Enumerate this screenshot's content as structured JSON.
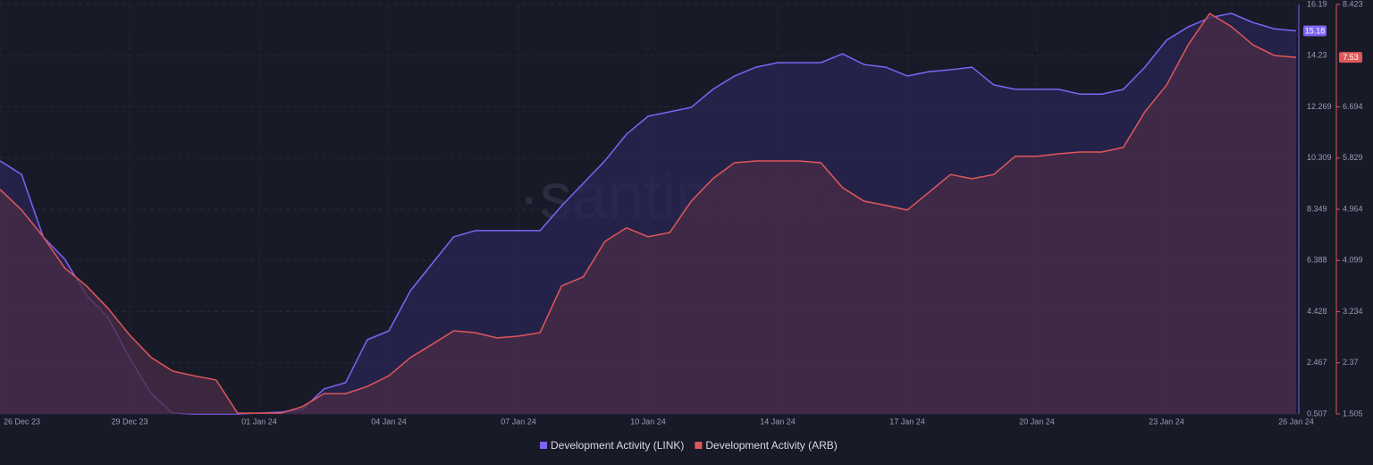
{
  "chart_data": {
    "type": "area",
    "watermark": "·santiment·",
    "categories": [
      "26 Dec 23",
      null,
      null,
      null,
      null,
      null,
      "29 Dec 23",
      null,
      null,
      null,
      null,
      null,
      "01 Jan 24",
      null,
      null,
      null,
      null,
      null,
      "04 Jan 24",
      null,
      null,
      null,
      null,
      null,
      "07 Jan 24",
      null,
      null,
      null,
      null,
      null,
      "10 Jan 24",
      null,
      null,
      null,
      null,
      null,
      "14 Jan 24",
      null,
      null,
      null,
      null,
      null,
      "17 Jan 24",
      null,
      null,
      null,
      null,
      null,
      "20 Jan 24",
      null,
      null,
      null,
      null,
      null,
      "23 Jan 24",
      null,
      null,
      null,
      null,
      null,
      "26 Jan 24"
    ],
    "series": [
      {
        "name": "Development Activity (LINK)",
        "color": "#7f63f4",
        "fill": "#2a2655",
        "current_value": 15.18,
        "values": [
          10.2,
          9.68,
          7.29,
          6.43,
          5.06,
          4.21,
          2.66,
          1.29,
          0.54,
          0.507,
          0.507,
          0.507,
          0.54,
          0.58,
          0.68,
          1.47,
          1.71,
          3.35,
          3.69,
          5.23,
          6.26,
          7.29,
          7.53,
          7.53,
          7.53,
          7.53,
          8.48,
          9.34,
          10.2,
          11.22,
          11.91,
          12.08,
          12.25,
          12.94,
          13.45,
          13.79,
          13.96,
          13.96,
          13.96,
          14.3,
          13.89,
          13.79,
          13.45,
          13.62,
          13.69,
          13.79,
          13.11,
          12.94,
          12.94,
          12.94,
          12.76,
          12.76,
          12.94,
          13.79,
          14.82,
          15.33,
          15.68,
          15.85,
          15.5,
          15.26,
          15.18
        ]
      },
      {
        "name": "Development Activity (ARB)",
        "color": "#e0575a",
        "fill": "#4a2c47",
        "axis": "y2",
        "current_value": 7.53,
        "values": [
          5.3,
          4.95,
          4.5,
          3.97,
          3.67,
          3.29,
          2.84,
          2.46,
          2.23,
          2.15,
          2.08,
          1.52,
          1.52,
          1.52,
          1.63,
          1.85,
          1.85,
          1.97,
          2.15,
          2.46,
          2.68,
          2.91,
          2.88,
          2.79,
          2.82,
          2.88,
          3.67,
          3.82,
          4.42,
          4.65,
          4.5,
          4.57,
          5.1,
          5.48,
          5.75,
          5.78,
          5.78,
          5.78,
          5.75,
          5.33,
          5.1,
          5.03,
          4.95,
          5.25,
          5.55,
          5.48,
          5.55,
          5.86,
          5.86,
          5.9,
          5.93,
          5.93,
          6.01,
          6.61,
          7.06,
          7.74,
          8.27,
          8.05,
          7.74,
          7.56,
          7.53
        ]
      }
    ],
    "ylim": [
      0.507,
      16.19
    ],
    "yticks": [
      0.507,
      2.467,
      4.428,
      6.388,
      8.349,
      10.309,
      12.269,
      14.23,
      16.19
    ],
    "y2lim": [
      1.505,
      8.423
    ],
    "y2ticks": [
      1.505,
      2.37,
      3.234,
      4.099,
      4.964,
      5.829,
      6.694,
      8.423
    ],
    "grid": true,
    "legend": "bottom"
  }
}
